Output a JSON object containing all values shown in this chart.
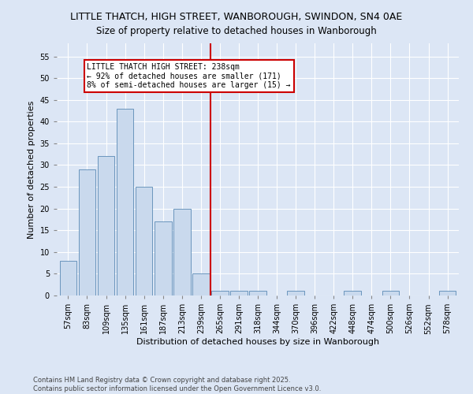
{
  "title": "LITTLE THATCH, HIGH STREET, WANBOROUGH, SWINDON, SN4 0AE",
  "subtitle": "Size of property relative to detached houses in Wanborough",
  "xlabel": "Distribution of detached houses by size in Wanborough",
  "ylabel": "Number of detached properties",
  "categories": [
    "57sqm",
    "83sqm",
    "109sqm",
    "135sqm",
    "161sqm",
    "187sqm",
    "213sqm",
    "239sqm",
    "265sqm",
    "291sqm",
    "318sqm",
    "344sqm",
    "370sqm",
    "396sqm",
    "422sqm",
    "448sqm",
    "474sqm",
    "500sqm",
    "526sqm",
    "552sqm",
    "578sqm"
  ],
  "values": [
    8,
    29,
    32,
    43,
    25,
    17,
    20,
    5,
    1,
    1,
    1,
    0,
    1,
    0,
    0,
    1,
    0,
    1,
    0,
    0,
    1
  ],
  "bar_color": "#c9d9ed",
  "bar_edge_color": "#5a8ab5",
  "vline_x": 7.5,
  "vline_color": "#cc0000",
  "annotation_text": "LITTLE THATCH HIGH STREET: 238sqm\n← 92% of detached houses are smaller (171)\n8% of semi-detached houses are larger (15) →",
  "annotation_box_color": "#ffffff",
  "annotation_border_color": "#cc0000",
  "ylim": [
    0,
    58
  ],
  "yticks": [
    0,
    5,
    10,
    15,
    20,
    25,
    30,
    35,
    40,
    45,
    50,
    55
  ],
  "bg_color": "#dce6f5",
  "plot_bg_color": "#dce6f5",
  "footer_text": "Contains HM Land Registry data © Crown copyright and database right 2025.\nContains public sector information licensed under the Open Government Licence v3.0.",
  "title_fontsize": 9,
  "xlabel_fontsize": 8,
  "ylabel_fontsize": 8,
  "tick_fontsize": 7,
  "annotation_fontsize": 7,
  "footer_fontsize": 6
}
